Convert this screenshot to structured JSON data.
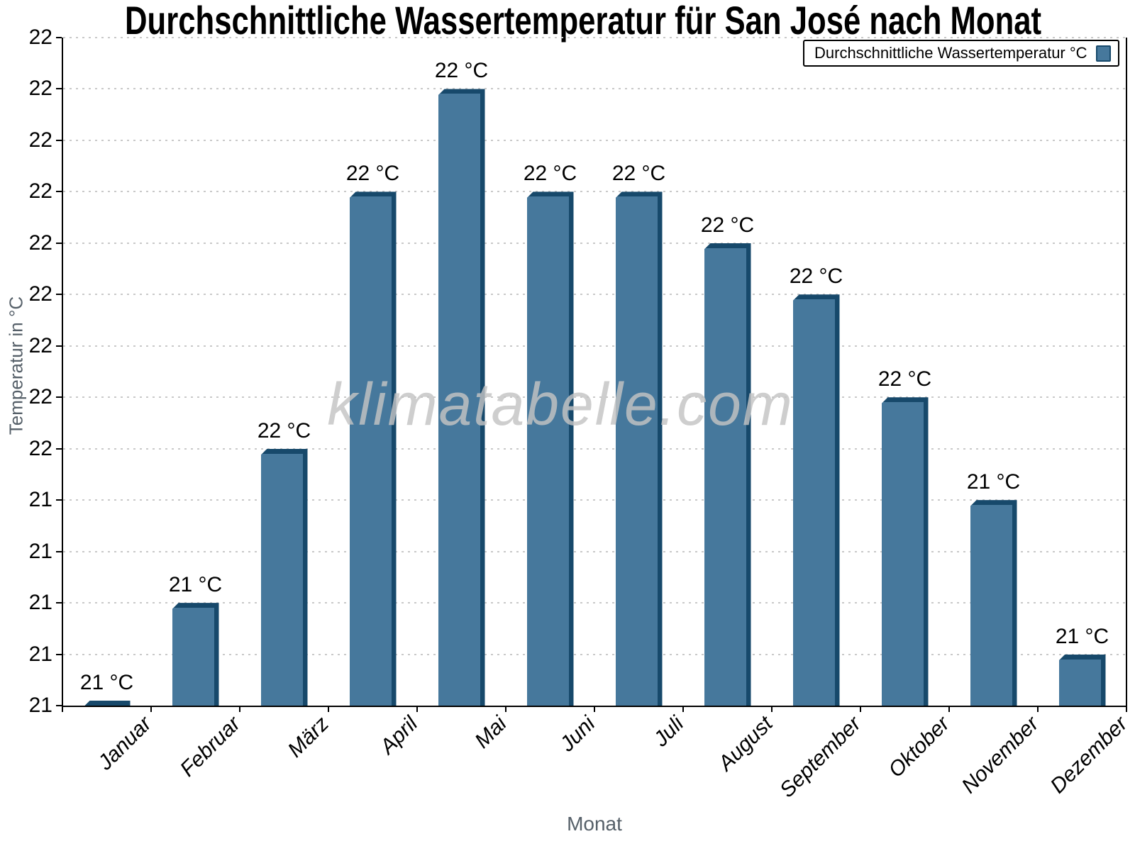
{
  "chart_data": {
    "type": "bar",
    "title": "Durchschnittliche Wassertemperatur für San José nach Monat",
    "xlabel": "Monat",
    "ylabel": "Temperatur in °C",
    "legend": "Durchschnittliche Wassertemperatur °C",
    "watermark": "klimatabelle.com",
    "categories": [
      "Januar",
      "Februar",
      "März",
      "April",
      "Mai",
      "Juni",
      "Juli",
      "August",
      "September",
      "Oktober",
      "November",
      "Dezember"
    ],
    "values": [
      21.0,
      21.2,
      21.5,
      22.0,
      22.2,
      22.0,
      22.0,
      21.9,
      21.8,
      21.6,
      21.4,
      21.1
    ],
    "value_labels": [
      "21 °C",
      "21 °C",
      "22 °C",
      "22 °C",
      "22 °C",
      "22 °C",
      "22 °C",
      "22 °C",
      "22 °C",
      "22 °C",
      "21 °C",
      "21 °C"
    ],
    "y_axis": {
      "min": 21.0,
      "max": 22.3,
      "tick_step": 0.1,
      "tick_labels_bottom_to_top": [
        "21",
        "21",
        "21",
        "21",
        "21",
        "22",
        "22",
        "22",
        "22",
        "22",
        "22",
        "22",
        "22",
        "22"
      ]
    },
    "x_axis": {
      "title": "Monat"
    },
    "legend_position": "top-right",
    "grid": true,
    "colors": {
      "bar_fill": "#46789C",
      "bar_shadow": "#17496B",
      "grid": "#c9c9c9",
      "axis": "#000000",
      "axis_title": "#566069",
      "value_label": "#000000",
      "watermark": "#c4c4c4",
      "background": "#ffffff"
    }
  }
}
